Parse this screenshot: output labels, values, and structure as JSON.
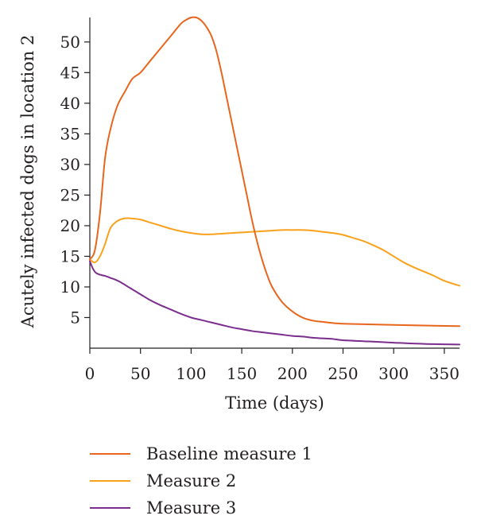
{
  "chart_data": {
    "type": "line",
    "xlabel": "Time (days)",
    "ylabel": "Acutely infected dogs in location 2",
    "xlim": [
      0,
      365
    ],
    "ylim": [
      0,
      54
    ],
    "xticks": [
      0,
      50,
      100,
      150,
      200,
      250,
      300,
      350
    ],
    "yticks": [
      5,
      10,
      15,
      20,
      25,
      30,
      35,
      40,
      45,
      50
    ],
    "grid": false,
    "legend_position": "bottom",
    "series": [
      {
        "name": "Baseline measure 1",
        "color": "#e8651c",
        "points": [
          [
            0,
            14.5
          ],
          [
            5,
            16
          ],
          [
            10,
            22
          ],
          [
            15,
            31
          ],
          [
            20,
            35.5
          ],
          [
            27,
            39.5
          ],
          [
            35,
            42
          ],
          [
            42,
            44
          ],
          [
            50,
            45
          ],
          [
            60,
            47
          ],
          [
            70,
            49
          ],
          [
            80,
            51
          ],
          [
            90,
            53
          ],
          [
            95,
            53.6
          ],
          [
            100,
            54
          ],
          [
            105,
            54
          ],
          [
            110,
            53.5
          ],
          [
            115,
            52.5
          ],
          [
            120,
            51
          ],
          [
            125,
            48.5
          ],
          [
            130,
            45
          ],
          [
            135,
            41
          ],
          [
            140,
            37
          ],
          [
            145,
            33
          ],
          [
            150,
            29
          ],
          [
            155,
            25
          ],
          [
            160,
            21
          ],
          [
            165,
            17.5
          ],
          [
            170,
            14.5
          ],
          [
            175,
            12
          ],
          [
            180,
            10
          ],
          [
            190,
            7.5
          ],
          [
            200,
            6
          ],
          [
            210,
            5
          ],
          [
            220,
            4.5
          ],
          [
            230,
            4.3
          ],
          [
            240,
            4.1
          ],
          [
            250,
            4
          ],
          [
            275,
            3.9
          ],
          [
            300,
            3.8
          ],
          [
            330,
            3.7
          ],
          [
            365,
            3.6
          ]
        ]
      },
      {
        "name": "Measure 2",
        "color": "#f9a11b",
        "points": [
          [
            0,
            14.5
          ],
          [
            5,
            14
          ],
          [
            10,
            15
          ],
          [
            15,
            17
          ],
          [
            20,
            19.5
          ],
          [
            25,
            20.5
          ],
          [
            30,
            21
          ],
          [
            35,
            21.2
          ],
          [
            40,
            21.2
          ],
          [
            50,
            21
          ],
          [
            60,
            20.5
          ],
          [
            70,
            20
          ],
          [
            80,
            19.5
          ],
          [
            90,
            19.1
          ],
          [
            100,
            18.8
          ],
          [
            110,
            18.6
          ],
          [
            120,
            18.6
          ],
          [
            130,
            18.7
          ],
          [
            140,
            18.8
          ],
          [
            150,
            18.9
          ],
          [
            160,
            19
          ],
          [
            170,
            19.1
          ],
          [
            180,
            19.2
          ],
          [
            190,
            19.3
          ],
          [
            200,
            19.3
          ],
          [
            210,
            19.3
          ],
          [
            220,
            19.2
          ],
          [
            230,
            19
          ],
          [
            240,
            18.8
          ],
          [
            250,
            18.5
          ],
          [
            260,
            18
          ],
          [
            270,
            17.5
          ],
          [
            280,
            16.8
          ],
          [
            290,
            16
          ],
          [
            300,
            15
          ],
          [
            310,
            14
          ],
          [
            320,
            13.2
          ],
          [
            330,
            12.5
          ],
          [
            340,
            11.8
          ],
          [
            350,
            11
          ],
          [
            365,
            10.2
          ]
        ]
      },
      {
        "name": "Measure 3",
        "color": "#7b2d8e",
        "points": [
          [
            0,
            14.2
          ],
          [
            3,
            13
          ],
          [
            6,
            12.3
          ],
          [
            10,
            12
          ],
          [
            15,
            11.8
          ],
          [
            20,
            11.5
          ],
          [
            25,
            11.2
          ],
          [
            30,
            10.8
          ],
          [
            40,
            9.8
          ],
          [
            50,
            8.8
          ],
          [
            60,
            7.8
          ],
          [
            70,
            7
          ],
          [
            80,
            6.3
          ],
          [
            90,
            5.6
          ],
          [
            100,
            5
          ],
          [
            110,
            4.6
          ],
          [
            120,
            4.2
          ],
          [
            130,
            3.8
          ],
          [
            140,
            3.4
          ],
          [
            150,
            3.1
          ],
          [
            160,
            2.8
          ],
          [
            170,
            2.6
          ],
          [
            180,
            2.4
          ],
          [
            190,
            2.2
          ],
          [
            200,
            2
          ],
          [
            210,
            1.9
          ],
          [
            220,
            1.7
          ],
          [
            230,
            1.6
          ],
          [
            240,
            1.5
          ],
          [
            250,
            1.3
          ],
          [
            275,
            1.1
          ],
          [
            300,
            0.9
          ],
          [
            330,
            0.7
          ],
          [
            365,
            0.6
          ]
        ]
      }
    ]
  }
}
